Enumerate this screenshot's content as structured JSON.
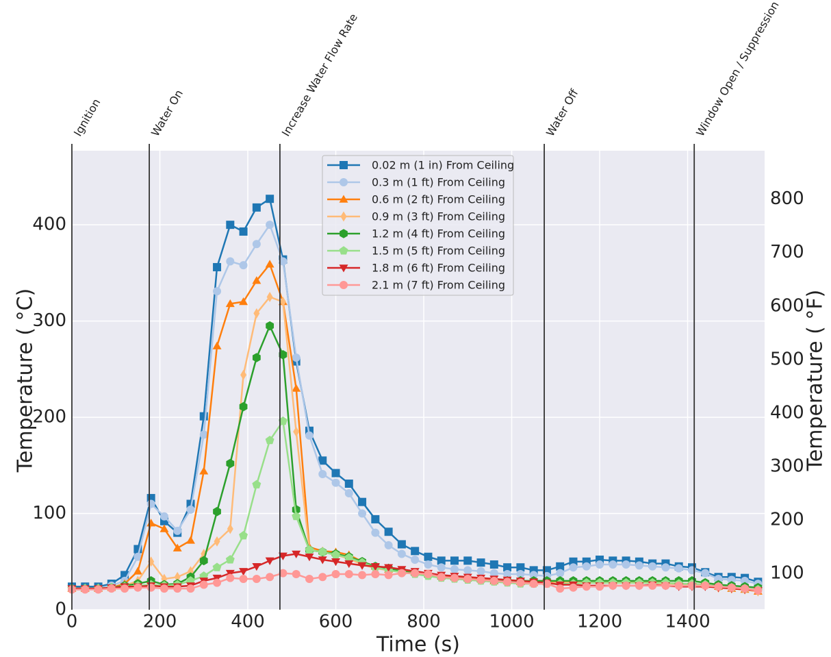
{
  "chart_data": {
    "type": "line",
    "xlabel": "Time (s)",
    "ylabel": "Temperature ( °C)",
    "y2label": "Temperature ( °F)",
    "xlim": [
      0,
      1575
    ],
    "ylim": [
      0,
      477
    ],
    "y2lim": [
      32,
      890.6
    ],
    "xticks": [
      0,
      200,
      400,
      600,
      800,
      1000,
      1200,
      1400
    ],
    "yticks": [
      0,
      100,
      200,
      300,
      400
    ],
    "y2ticks": [
      100,
      200,
      300,
      400,
      500,
      600,
      700,
      800
    ],
    "grid": true,
    "events": [
      {
        "label": "Ignition",
        "x": 0
      },
      {
        "label": "Water On",
        "x": 176
      },
      {
        "label": "Increase Water Flow Rate",
        "x": 473
      },
      {
        "label": "Water Off",
        "x": 1074
      },
      {
        "label": "Window Open / Suppression",
        "x": 1415
      }
    ],
    "x": [
      0,
      30,
      60,
      90,
      120,
      150,
      180,
      210,
      240,
      270,
      300,
      330,
      360,
      390,
      420,
      450,
      480,
      510,
      540,
      570,
      600,
      630,
      660,
      690,
      720,
      750,
      780,
      810,
      840,
      870,
      900,
      930,
      960,
      990,
      1020,
      1050,
      1080,
      1110,
      1140,
      1170,
      1200,
      1230,
      1260,
      1290,
      1320,
      1350,
      1380,
      1410,
      1440,
      1470,
      1500,
      1530,
      1560
    ],
    "series": [
      {
        "name": "0.02 m (1 in) From Ceiling",
        "color": "#1f77b4",
        "marker": "square",
        "values": [
          24,
          24,
          24,
          27,
          36,
          63,
          116,
          92,
          80,
          110,
          201,
          356,
          400,
          393,
          418,
          427,
          364,
          258,
          186,
          155,
          142,
          131,
          112,
          94,
          81,
          68,
          61,
          55,
          51,
          51,
          51,
          49,
          47,
          44,
          44,
          41,
          41,
          45,
          50,
          50,
          52,
          51,
          51,
          50,
          48,
          48,
          45,
          44,
          39,
          34,
          34,
          33,
          29
        ]
      },
      {
        "name": "0.3 m (1 ft) From Ceiling",
        "color": "#aec7e8",
        "marker": "circle",
        "values": [
          22,
          22,
          22,
          25,
          30,
          55,
          110,
          97,
          82,
          104,
          182,
          331,
          362,
          358,
          380,
          400,
          362,
          262,
          181,
          141,
          132,
          121,
          100,
          80,
          67,
          58,
          52,
          47,
          44,
          42,
          41,
          40,
          38,
          37,
          37,
          36,
          35,
          38,
          44,
          45,
          47,
          47,
          47,
          46,
          45,
          44,
          43,
          41,
          38,
          32,
          31,
          30,
          27
        ]
      },
      {
        "name": "0.6 m (2 ft) From Ceiling",
        "color": "#ff7f0e",
        "marker": "triangle-up",
        "values": [
          22,
          22,
          22,
          23,
          27,
          40,
          90,
          84,
          64,
          72,
          144,
          274,
          318,
          320,
          342,
          359,
          320,
          230,
          65,
          61,
          60,
          57,
          50,
          45,
          42,
          40,
          39,
          37,
          35,
          34,
          33,
          32,
          30,
          30,
          29,
          28,
          29,
          29,
          29,
          30,
          30,
          30,
          29,
          29,
          29,
          28,
          27,
          27,
          26,
          24,
          22,
          21,
          19
        ]
      },
      {
        "name": "0.9 m (3 ft) From Ceiling",
        "color": "#ffbb78",
        "marker": "diamond",
        "values": [
          22,
          22,
          22,
          23,
          25,
          30,
          50,
          32,
          34,
          40,
          58,
          71,
          84,
          244,
          308,
          325,
          320,
          185,
          62,
          60,
          57,
          53,
          47,
          43,
          41,
          39,
          38,
          36,
          34,
          33,
          32,
          31,
          30,
          29,
          28,
          28,
          28,
          28,
          28,
          29,
          29,
          29,
          28,
          28,
          28,
          27,
          27,
          26,
          25,
          23,
          22,
          21,
          19
        ]
      },
      {
        "name": "1.2 m (4 ft) From Ceiling",
        "color": "#2ca02c",
        "marker": "hexagon",
        "values": [
          22,
          22,
          22,
          23,
          25,
          27,
          30,
          26,
          27,
          34,
          51,
          102,
          152,
          211,
          262,
          295,
          265,
          104,
          62,
          60,
          58,
          55,
          50,
          45,
          43,
          40,
          38,
          36,
          34,
          33,
          32,
          31,
          30,
          30,
          30,
          30,
          30,
          30,
          30,
          30,
          30,
          30,
          30,
          30,
          30,
          30,
          30,
          30,
          28,
          26,
          25,
          24,
          23
        ]
      },
      {
        "name": "1.5 m (5 ft) From Ceiling",
        "color": "#98df8a",
        "marker": "pentagon",
        "values": [
          22,
          22,
          22,
          23,
          24,
          25,
          26,
          25,
          26,
          30,
          35,
          44,
          52,
          77,
          130,
          176,
          196,
          97,
          62,
          60,
          57,
          54,
          49,
          44,
          41,
          39,
          37,
          35,
          33,
          32,
          31,
          30,
          29,
          28,
          27,
          27,
          27,
          27,
          27,
          28,
          28,
          28,
          28,
          28,
          28,
          28,
          27,
          27,
          26,
          24,
          23,
          22,
          21
        ]
      },
      {
        "name": "1.8 m (6 ft) From Ceiling",
        "color": "#d62728",
        "marker": "triangle-down",
        "values": [
          22,
          22,
          22,
          23,
          24,
          24,
          25,
          24,
          24,
          25,
          30,
          33,
          38,
          40,
          45,
          51,
          56,
          58,
          55,
          52,
          50,
          48,
          46,
          45,
          44,
          42,
          40,
          38,
          36,
          35,
          34,
          33,
          32,
          31,
          30,
          29,
          28,
          26,
          26,
          25,
          25,
          25,
          25,
          25,
          26,
          25,
          24,
          24,
          24,
          23,
          22,
          21,
          20
        ]
      },
      {
        "name": "2.1 m (7 ft) From Ceiling",
        "color": "#ff9896",
        "marker": "circle",
        "values": [
          21,
          21,
          21,
          22,
          22,
          23,
          23,
          22,
          22,
          22,
          26,
          28,
          33,
          32,
          32,
          34,
          38,
          37,
          32,
          34,
          37,
          37,
          36,
          37,
          36,
          38,
          38,
          37,
          34,
          33,
          32,
          31,
          30,
          29,
          28,
          27,
          27,
          22,
          23,
          24,
          24,
          25,
          25,
          25,
          25,
          25,
          25,
          25,
          25,
          24,
          23,
          22,
          20
        ]
      }
    ]
  }
}
